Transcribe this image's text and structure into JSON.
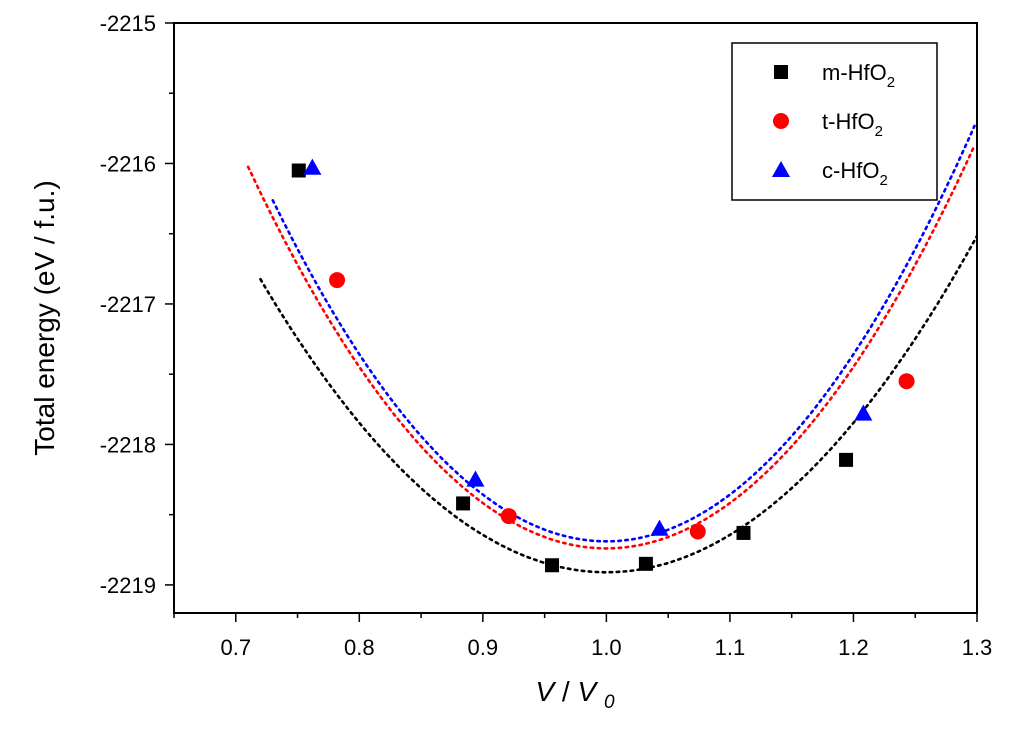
{
  "chart_data": {
    "type": "scatter",
    "title": "",
    "xlabel": "V / V0",
    "xlabel_main": "V",
    "xlabel_sep": "/ ",
    "xlabel_sub_base": "V",
    "xlabel_sub": "0",
    "ylabel": "Total energy (eV / f.u.)",
    "xlim": [
      0.65,
      1.3
    ],
    "ylim": [
      -2219.2,
      -2215.0
    ],
    "x_ticks": [
      0.7,
      0.8,
      0.9,
      1.0,
      1.1,
      1.2,
      1.3
    ],
    "x_tick_labels": [
      "0.7",
      "0.8",
      "0.9",
      "1.0",
      "1.1",
      "1.2",
      "1.3"
    ],
    "y_ticks": [
      -2219,
      -2218,
      -2217,
      -2216,
      -2215
    ],
    "y_tick_labels": [
      "-2219",
      "-2218",
      "-2217",
      "-2216",
      "-2215"
    ],
    "grid": false,
    "legend_position": "top-right",
    "series": [
      {
        "name": "m-HfO2",
        "legend_base": "m-HfO",
        "legend_sub": "2",
        "marker": "square",
        "color": "#000000",
        "x": [
          0.751,
          0.884,
          0.956,
          1.032,
          1.111,
          1.194
        ],
        "y": [
          -2216.05,
          -2218.42,
          -2218.86,
          -2218.85,
          -2218.63,
          -2218.11
        ],
        "fit": {
          "type": "parabola",
          "x_min": 0.72,
          "y_min": -2218.91,
          "curvature": 26.6
        }
      },
      {
        "name": "t-HfO2",
        "legend_base": "t-HfO",
        "legend_sub": "2",
        "marker": "circle",
        "color": "#ff0000",
        "x": [
          0.782,
          0.921,
          1.074,
          1.243
        ],
        "y": [
          -2216.83,
          -2218.51,
          -2218.62,
          -2217.55
        ],
        "fit": {
          "type": "parabola",
          "x_min": 0.71,
          "y_min": -2218.74,
          "curvature": 32.3
        }
      },
      {
        "name": "c-HfO2",
        "legend_base": "c-HfO",
        "legend_sub": "2",
        "marker": "triangle",
        "color": "#0000ff",
        "x": [
          0.762,
          0.894,
          1.043,
          1.208
        ],
        "y": [
          -2216.03,
          -2218.25,
          -2218.6,
          -2217.78
        ],
        "fit": {
          "type": "parabola",
          "x_min": 0.73,
          "y_min": -2218.69,
          "curvature": 33.3
        }
      }
    ]
  }
}
